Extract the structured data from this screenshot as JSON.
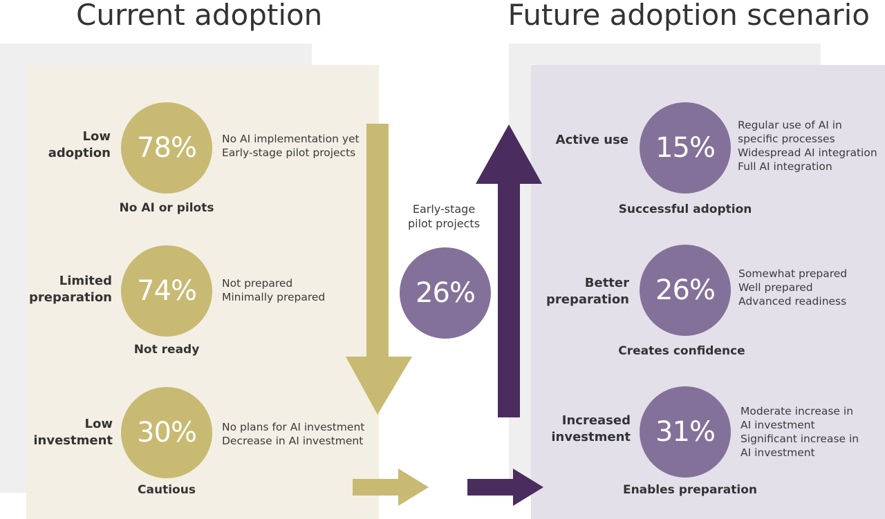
{
  "colors": {
    "gold": "#c8ba72",
    "purple": "#84719a",
    "dark_purple": "#4a2c5e",
    "left_panel": "#f3efe4",
    "right_panel": "#e4e0ea",
    "grey_backdrop": "#efefef"
  },
  "titles": {
    "current": "Current adoption",
    "future": "Future adoption scenario"
  },
  "current": {
    "low_adoption": {
      "label": [
        "Low",
        "adoption"
      ],
      "value": "78%",
      "desc": [
        "No AI implementation yet",
        "Early-stage pilot projects"
      ],
      "caption": "No AI or pilots"
    },
    "limited_preparation": {
      "label": [
        "Limited",
        "preparation"
      ],
      "value": "74%",
      "desc": [
        "Not prepared",
        "Minimally prepared"
      ],
      "caption": "Not ready"
    },
    "low_investment": {
      "label": [
        "Low",
        "investment"
      ],
      "value": "30%",
      "desc": [
        "No plans for AI investment",
        "Decrease in AI investment"
      ],
      "caption": "Cautious"
    }
  },
  "middle": {
    "caption": [
      "Early-stage",
      "pilot projects"
    ],
    "value": "26%"
  },
  "future": {
    "active_use": {
      "label": [
        "Active use"
      ],
      "value": "15%",
      "desc": [
        "Regular use of AI in",
        "specific processes",
        "Widespread AI integration",
        "Full AI integration"
      ],
      "caption": "Successful adoption"
    },
    "better_preparation": {
      "label": [
        "Better",
        "preparation"
      ],
      "value": "26%",
      "desc": [
        "Somewhat prepared",
        "Well prepared",
        "Advanced readiness"
      ],
      "caption": "Creates confidence"
    },
    "increased_investment": {
      "label": [
        "Increased",
        "investment"
      ],
      "value": "31%",
      "desc": [
        "Moderate increase in",
        "AI investment",
        "Significant increase in",
        "AI investment"
      ],
      "caption": "Enables preparation"
    }
  }
}
